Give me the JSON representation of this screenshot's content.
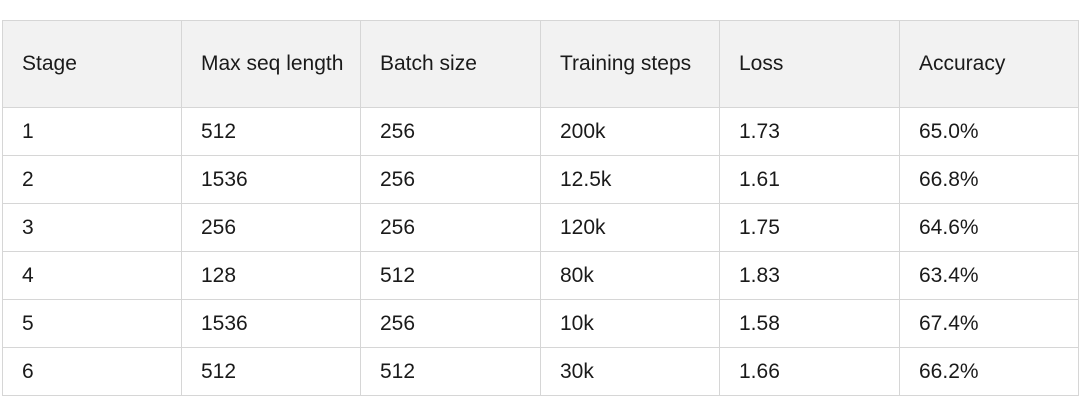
{
  "table": {
    "headers": [
      "Stage",
      "Max seq length",
      "Batch size",
      "Training steps",
      "Loss",
      "Accuracy"
    ],
    "rows": [
      [
        "1",
        "512",
        "256",
        "200k",
        "1.73",
        "65.0%"
      ],
      [
        "2",
        "1536",
        "256",
        "12.5k",
        "1.61",
        "66.8%"
      ],
      [
        "3",
        "256",
        "256",
        "120k",
        "1.75",
        "64.6%"
      ],
      [
        "4",
        "128",
        "512",
        "80k",
        "1.83",
        "63.4%"
      ],
      [
        "5",
        "1536",
        "256",
        "10k",
        "1.58",
        "67.4%"
      ],
      [
        "6",
        "512",
        "512",
        "30k",
        "1.66",
        "66.2%"
      ]
    ]
  }
}
